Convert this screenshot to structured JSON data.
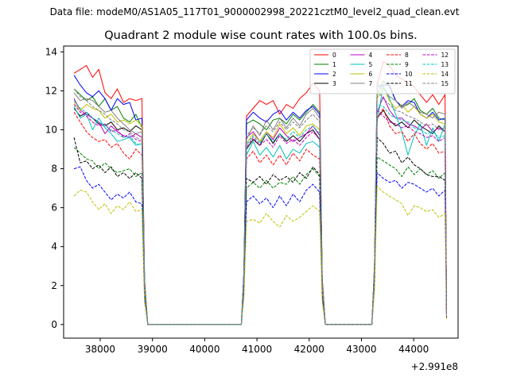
{
  "chart_data": {
    "type": "line",
    "suptitle": "Data file: modeM0/AS1A05_117T01_9000002998_20221cztM0_level2_quad_clean.evt",
    "title": "Quadrant 2 module wise count rates with 100.0s bins.",
    "xlabel": "",
    "ylabel": "",
    "x_offset_label": "+2.991e8",
    "xlim": [
      37300,
      44850
    ],
    "ylim": [
      -0.7,
      14.3
    ],
    "x_ticks": [
      38000,
      39000,
      40000,
      41000,
      42000,
      43000,
      44000
    ],
    "x_tick_labels": [
      "38000",
      "39000",
      "40000",
      "41000",
      "42000",
      "43000",
      "44000"
    ],
    "y_ticks": [
      0,
      2,
      4,
      6,
      8,
      10,
      12,
      14
    ],
    "y_tick_labels": [
      "0",
      "2",
      "4",
      "6",
      "8",
      "10",
      "12",
      "14"
    ],
    "legend_position": "top-right",
    "segments": [
      {
        "x_start": 37500,
        "x_end": 38800
      },
      {
        "x_start": 40800,
        "x_end": 42200
      },
      {
        "x_start": 43300,
        "x_end": 44600
      }
    ],
    "series": [
      {
        "name": "0",
        "color": "#ff0000",
        "style": "solid",
        "seg1": [
          12.9,
          13.1,
          13.3,
          12.7,
          13.1,
          11.9,
          11.6,
          12.1,
          11.4,
          11.6,
          11.5,
          11.6
        ],
        "seg2": [
          10.7,
          11.1,
          11.5,
          11.3,
          11.5,
          10.8,
          11.3,
          11.1,
          11.6,
          11.9,
          12.4,
          12.0
        ],
        "seg3": [
          12.3,
          13.5,
          13.3,
          12.8,
          12.6,
          12.4,
          12.2,
          11.8,
          11.4,
          11.8,
          11.3,
          11.8
        ]
      },
      {
        "name": "1",
        "color": "#008000",
        "style": "solid",
        "seg1": [
          12.1,
          11.8,
          11.5,
          11.7,
          11.2,
          11.6,
          11.0,
          11.2,
          10.6,
          10.4,
          10.8,
          10.1
        ],
        "seg2": [
          10.3,
          10.5,
          10.3,
          10.0,
          10.5,
          10.6,
          10.3,
          10.8,
          10.5,
          10.9,
          11.3,
          10.9
        ],
        "seg3": [
          11.8,
          12.5,
          12.2,
          11.5,
          11.2,
          11.3,
          11.6,
          11.0,
          10.8,
          11.1,
          10.6,
          10.5
        ]
      },
      {
        "name": "2",
        "color": "#0000ff",
        "style": "solid",
        "seg1": [
          12.8,
          12.3,
          11.9,
          11.7,
          12.0,
          11.6,
          11.0,
          11.6,
          11.3,
          11.4,
          10.5,
          10.6
        ],
        "seg2": [
          10.5,
          10.9,
          10.6,
          10.4,
          10.8,
          11.0,
          10.5,
          10.9,
          10.6,
          11.0,
          11.2,
          10.8
        ],
        "seg3": [
          12.2,
          12.3,
          12.3,
          11.5,
          11.2,
          11.5,
          11.4,
          10.8,
          10.6,
          10.9,
          10.5,
          10.6
        ]
      },
      {
        "name": "3",
        "color": "#000000",
        "style": "solid",
        "seg1": [
          11.1,
          10.7,
          10.9,
          10.6,
          10.3,
          10.2,
          10.4,
          10.0,
          10.1,
          9.9,
          10.2,
          10.0
        ],
        "seg2": [
          9.0,
          9.5,
          9.2,
          9.8,
          9.3,
          9.8,
          9.4,
          9.7,
          9.4,
          9.8,
          10.0,
          9.5
        ],
        "seg3": [
          10.6,
          11.0,
          10.5,
          10.2,
          10.4,
          10.1,
          10.5,
          10.2,
          10.0,
          9.8,
          10.2,
          9.9
        ]
      },
      {
        "name": "4",
        "color": "#bf00bf",
        "style": "solid",
        "seg1": [
          11.6,
          11.0,
          10.8,
          10.6,
          10.4,
          9.8,
          10.2,
          9.9,
          9.7,
          9.6,
          9.8,
          9.6
        ],
        "seg2": [
          9.6,
          9.9,
          9.4,
          9.9,
          9.5,
          10.1,
          9.7,
          9.4,
          9.6,
          9.8,
          10.2,
          9.7
        ],
        "seg3": [
          10.9,
          11.7,
          11.0,
          10.6,
          10.6,
          10.3,
          10.2,
          10.0,
          10.3,
          9.9,
          10.1,
          9.9
        ]
      },
      {
        "name": "5",
        "color": "#00bfbf",
        "style": "solid",
        "seg1": [
          11.2,
          10.6,
          10.8,
          10.0,
          10.6,
          10.1,
          9.8,
          9.4,
          9.5,
          9.6,
          9.2,
          9.3
        ],
        "seg2": [
          8.7,
          9.4,
          8.7,
          9.1,
          8.6,
          9.2,
          8.5,
          9.0,
          8.8,
          9.3,
          9.4,
          9.1
        ],
        "seg3": [
          10.4,
          12.3,
          11.6,
          10.8,
          9.9,
          8.7,
          9.7,
          10.3,
          9.2,
          10.1,
          9.4,
          10.3
        ]
      },
      {
        "name": "6",
        "color": "#bfbf00",
        "style": "solid",
        "seg1": [
          11.4,
          11.0,
          11.3,
          11.1,
          11.0,
          10.6,
          10.8,
          10.4,
          10.5,
          10.3,
          10.5,
          10.2
        ],
        "seg2": [
          9.3,
          9.8,
          9.4,
          9.9,
          9.6,
          10.3,
          9.8,
          10.1,
          9.7,
          10.2,
          10.3,
          10.0
        ],
        "seg3": [
          11.6,
          12.2,
          11.5,
          11.1,
          11.3,
          10.9,
          11.2,
          10.8,
          10.6,
          10.8,
          10.4,
          10.3
        ]
      },
      {
        "name": "7",
        "color": "#808080",
        "style": "solid",
        "seg1": [
          11.9,
          11.5,
          11.6,
          11.5,
          11.2,
          10.9,
          11.0,
          10.6,
          10.3,
          10.0,
          9.8,
          9.9
        ],
        "seg2": [
          9.5,
          10.2,
          9.7,
          10.5,
          10.0,
          10.6,
          10.1,
          10.6,
          10.2,
          10.8,
          11.1,
          10.6
        ],
        "seg3": [
          12.4,
          12.1,
          11.7,
          11.5,
          11.1,
          11.4,
          11.2,
          10.9,
          10.8,
          10.6,
          10.9,
          10.8
        ]
      },
      {
        "name": "8",
        "color": "#ff0000",
        "style": "dashed",
        "seg1": [
          10.9,
          10.4,
          9.9,
          9.6,
          9.4,
          9.5,
          9.1,
          9.3,
          8.8,
          8.5,
          9.0,
          8.7
        ],
        "seg2": [
          8.5,
          8.9,
          8.3,
          8.7,
          8.2,
          8.7,
          8.2,
          8.8,
          8.4,
          9.0,
          8.7,
          8.5
        ],
        "seg3": [
          10.6,
          11.1,
          10.2,
          9.8,
          9.9,
          9.4,
          9.8,
          9.3,
          9.0,
          9.3,
          8.8,
          8.9
        ]
      },
      {
        "name": "9",
        "color": "#008000",
        "style": "dashed",
        "seg1": [
          9.1,
          8.8,
          8.5,
          8.4,
          8.0,
          8.3,
          8.0,
          7.8,
          7.9,
          8.0,
          7.6,
          7.8
        ],
        "seg2": [
          7.0,
          7.3,
          7.0,
          7.4,
          7.0,
          7.3,
          7.2,
          7.6,
          7.2,
          7.7,
          8.0,
          7.6
        ],
        "seg3": [
          8.6,
          8.4,
          8.2,
          8.0,
          7.6,
          8.1,
          7.7,
          8.0,
          7.7,
          7.9,
          7.5,
          7.8
        ]
      },
      {
        "name": "10",
        "color": "#0000ff",
        "style": "dashed",
        "seg1": [
          8.0,
          8.1,
          7.4,
          7.0,
          7.2,
          6.8,
          6.4,
          6.7,
          6.5,
          6.8,
          6.3,
          6.2
        ],
        "seg2": [
          6.3,
          6.6,
          6.2,
          6.5,
          6.0,
          6.6,
          6.1,
          6.7,
          6.3,
          6.9,
          7.2,
          6.8
        ],
        "seg3": [
          7.8,
          7.5,
          7.3,
          7.4,
          7.0,
          7.3,
          7.2,
          7.0,
          6.8,
          7.0,
          6.6,
          6.9
        ]
      },
      {
        "name": "11",
        "color": "#000000",
        "style": "dashed",
        "seg1": [
          9.6,
          8.3,
          8.4,
          8.0,
          8.2,
          7.8,
          8.1,
          7.6,
          7.8,
          7.5,
          7.8,
          7.5
        ],
        "seg2": [
          7.5,
          7.3,
          7.6,
          7.2,
          7.7,
          7.4,
          7.6,
          7.3,
          7.8,
          7.5,
          8.1,
          7.7
        ],
        "seg3": [
          9.6,
          9.3,
          8.8,
          8.9,
          8.3,
          8.6,
          8.2,
          8.0,
          7.7,
          7.6,
          7.6,
          7.4
        ]
      },
      {
        "name": "12",
        "color": "#bf00bf",
        "style": "dashed",
        "seg1": [
          11.3,
          10.9,
          10.7,
          10.4,
          10.2,
          10.3,
          9.9,
          10.0,
          9.6,
          9.8,
          9.5,
          9.4
        ],
        "seg2": [
          9.1,
          9.6,
          9.2,
          9.5,
          9.1,
          9.7,
          9.3,
          9.5,
          9.2,
          9.6,
          9.9,
          9.5
        ],
        "seg3": [
          11.0,
          10.7,
          10.4,
          10.3,
          10.1,
          10.2,
          9.9,
          9.8,
          9.6,
          9.7,
          9.4,
          9.6
        ]
      },
      {
        "name": "13",
        "color": "#00bfbf",
        "style": "dashed",
        "seg1": [
          11.5,
          11.1,
          10.9,
          10.6,
          10.4,
          10.2,
          10.0,
          9.8,
          9.6,
          9.7,
          9.3,
          9.2
        ],
        "seg2": [
          9.2,
          9.7,
          9.3,
          9.8,
          9.4,
          9.8,
          9.5,
          9.9,
          9.6,
          10.0,
          10.2,
          9.8
        ],
        "seg3": [
          11.3,
          11.2,
          10.8,
          10.6,
          10.5,
          10.4,
          10.1,
          10.0,
          9.8,
          9.9,
          9.6,
          9.7
        ]
      },
      {
        "name": "14",
        "color": "#bfbf00",
        "style": "dashed",
        "seg1": [
          6.6,
          6.9,
          6.8,
          6.3,
          5.9,
          6.2,
          5.7,
          6.1,
          5.9,
          6.3,
          5.8,
          5.9
        ],
        "seg2": [
          5.3,
          5.4,
          5.2,
          5.7,
          5.3,
          5.0,
          5.6,
          5.3,
          5.5,
          5.8,
          6.1,
          5.8
        ],
        "seg3": [
          7.1,
          6.8,
          6.6,
          6.4,
          6.2,
          5.6,
          6.1,
          6.0,
          5.8,
          5.9,
          5.5,
          5.7
        ]
      },
      {
        "name": "15",
        "color": "#808080",
        "style": "dashed",
        "seg1": [
          12.1,
          11.7,
          11.5,
          11.2,
          11.0,
          10.8,
          10.5,
          10.3,
          10.0,
          9.9,
          9.6,
          9.5
        ],
        "seg2": [
          9.7,
          10.1,
          9.8,
          10.2,
          9.9,
          10.4,
          10.0,
          10.4,
          10.1,
          10.5,
          10.8,
          10.4
        ],
        "seg3": [
          12.0,
          11.6,
          11.3,
          11.0,
          10.9,
          10.7,
          10.6,
          10.4,
          10.2,
          10.3,
          10.0,
          10.1
        ]
      }
    ]
  }
}
